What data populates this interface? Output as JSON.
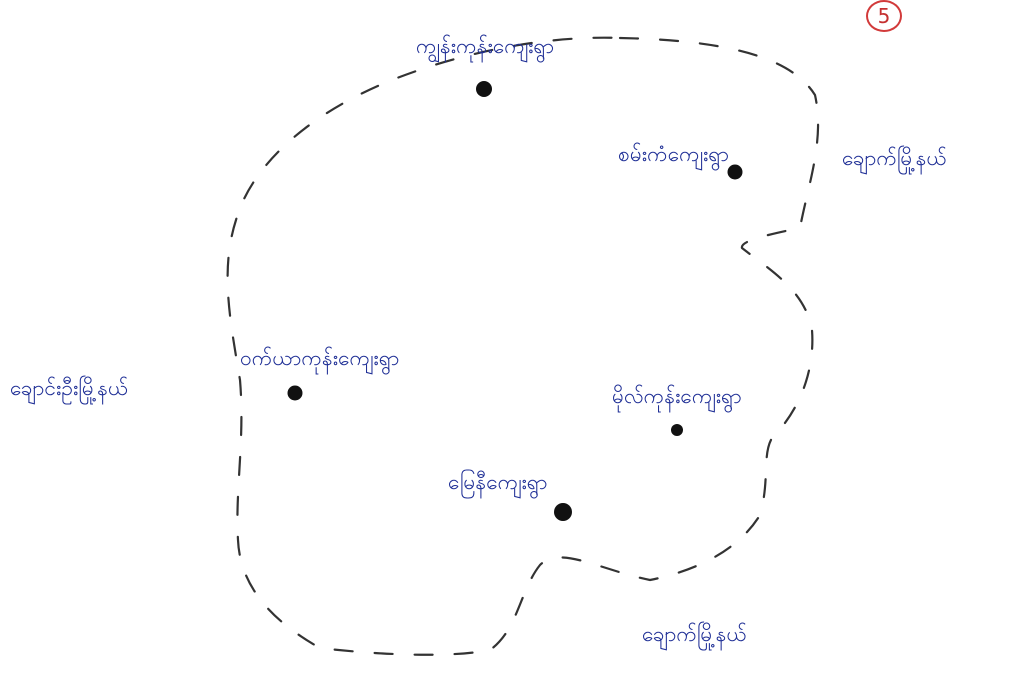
{
  "page_number": "5",
  "colors": {
    "ink": "#1f2f96",
    "boundary": "#333333",
    "marker": "#111111",
    "page_number": "#c53030",
    "paper": "#ffffff"
  },
  "map": {
    "boundary_style": "dashed",
    "villages": [
      {
        "id": "north",
        "name": "ကျွန်းကုန်းကျေးရွာ"
      },
      {
        "id": "northeast",
        "name": "စမ်းကံကျေးရွာ"
      },
      {
        "id": "west",
        "name": "ဝက်ယာကုန်းကျေးရွာ"
      },
      {
        "id": "east",
        "name": "မိုလ်ကုန်းကျေးရွာ"
      },
      {
        "id": "south",
        "name": "မြေနီကျေးရွာ"
      }
    ],
    "neighbors": [
      {
        "id": "east-neighbor",
        "name": "ချောက်မြို့နယ်"
      },
      {
        "id": "west-neighbor",
        "name": "ချောင်းဦးမြို့နယ်"
      },
      {
        "id": "south-neighbor",
        "name": "ချောက်မြို့နယ်"
      }
    ]
  }
}
